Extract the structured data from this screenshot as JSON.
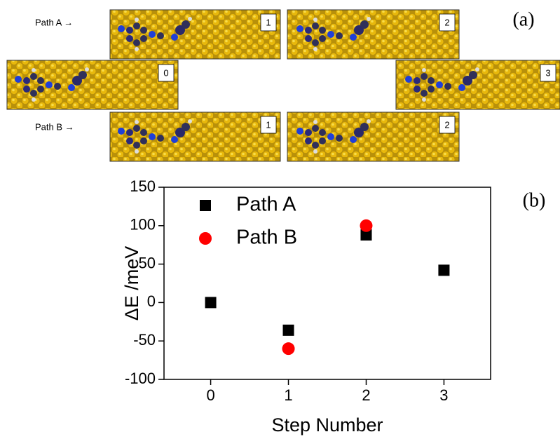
{
  "panel_a": {
    "label": "(a)",
    "path_a": {
      "label": "Path A →",
      "steps": [
        "1",
        "2"
      ]
    },
    "shared_steps": [
      "0",
      "3"
    ],
    "path_b": {
      "label": "Path B →",
      "steps": [
        "1",
        "2"
      ]
    }
  },
  "chart_data": {
    "type": "scatter",
    "annotations": [
      "(b)"
    ],
    "x_label": "Step Number",
    "y_label": "ΔE /meV",
    "series": [
      {
        "name": "Path A",
        "color": "#000000",
        "marker": "square",
        "x": [
          0,
          1,
          2,
          3
        ],
        "values": [
          0,
          -36,
          88,
          42
        ]
      },
      {
        "name": "Path B",
        "color": "#ff0000",
        "marker": "circle",
        "x": [
          1,
          2
        ],
        "values": [
          -60,
          100
        ]
      }
    ],
    "xlim": [
      -0.6,
      3.6
    ],
    "xticks": [
      0,
      1,
      2,
      3
    ],
    "ylim": [
      -100,
      150
    ],
    "yticks": [
      -100,
      -50,
      0,
      50,
      100,
      150
    ],
    "legend": "upper-left"
  }
}
